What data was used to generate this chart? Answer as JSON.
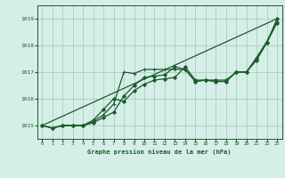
{
  "background_color": "#d6eee8",
  "grid_color": "#aacfbf",
  "line_color": "#1a5c2a",
  "title": "Graphe pression niveau de la mer (hPa)",
  "xlim": [
    -0.5,
    23.5
  ],
  "ylim": [
    1014.5,
    1019.5
  ],
  "yticks": [
    1015,
    1016,
    1017,
    1018,
    1019
  ],
  "xticks": [
    0,
    1,
    2,
    3,
    4,
    5,
    6,
    7,
    8,
    9,
    10,
    11,
    12,
    13,
    14,
    15,
    16,
    17,
    18,
    19,
    20,
    21,
    22,
    23
  ],
  "series": [
    {
      "x": [
        0,
        1,
        2,
        3,
        4,
        5,
        6,
        7,
        8,
        9,
        10,
        11,
        12,
        13,
        14,
        15,
        16,
        17,
        18,
        19,
        20,
        21,
        22,
        23
      ],
      "y": [
        1015.0,
        1014.9,
        1015.0,
        1015.0,
        1015.0,
        1015.1,
        1015.3,
        1015.5,
        1016.1,
        1016.5,
        1016.8,
        1016.85,
        1016.9,
        1017.2,
        1017.1,
        1016.65,
        1016.7,
        1016.65,
        1016.65,
        1017.0,
        1017.0,
        1017.5,
        1018.1,
        1019.0
      ],
      "marker": "D",
      "markersize": 2.0,
      "linewidth": 0.9
    },
    {
      "x": [
        0,
        1,
        2,
        3,
        4,
        5,
        6,
        7,
        8,
        9,
        10,
        11,
        12,
        13,
        14,
        15,
        16,
        17,
        18,
        19,
        20,
        21,
        22,
        23
      ],
      "y": [
        1015.0,
        1014.9,
        1015.0,
        1015.0,
        1015.0,
        1015.15,
        1015.4,
        1015.8,
        1017.0,
        1016.95,
        1017.1,
        1017.1,
        1017.1,
        1017.1,
        1017.1,
        1016.65,
        1016.7,
        1016.65,
        1016.65,
        1017.0,
        1017.0,
        1017.55,
        1018.15,
        1018.9
      ],
      "marker": "+",
      "markersize": 3.5,
      "linewidth": 0.9
    },
    {
      "x": [
        0,
        1,
        2,
        3,
        4,
        5,
        6,
        7,
        8,
        9,
        10,
        11,
        12,
        13,
        14,
        15,
        16,
        17,
        18,
        19,
        20,
        21,
        22,
        23
      ],
      "y": [
        1015.0,
        1014.9,
        1015.0,
        1015.0,
        1015.0,
        1015.2,
        1015.6,
        1016.0,
        1015.9,
        1016.3,
        1016.55,
        1016.7,
        1016.75,
        1016.8,
        1017.2,
        1016.7,
        1016.7,
        1016.7,
        1016.7,
        1017.0,
        1017.0,
        1017.45,
        1018.1,
        1018.85
      ],
      "marker": "D",
      "markersize": 2.0,
      "linewidth": 0.9
    },
    {
      "x": [
        0,
        23
      ],
      "y": [
        1015.0,
        1019.0
      ],
      "marker": null,
      "markersize": 0,
      "linewidth": 0.9
    }
  ]
}
